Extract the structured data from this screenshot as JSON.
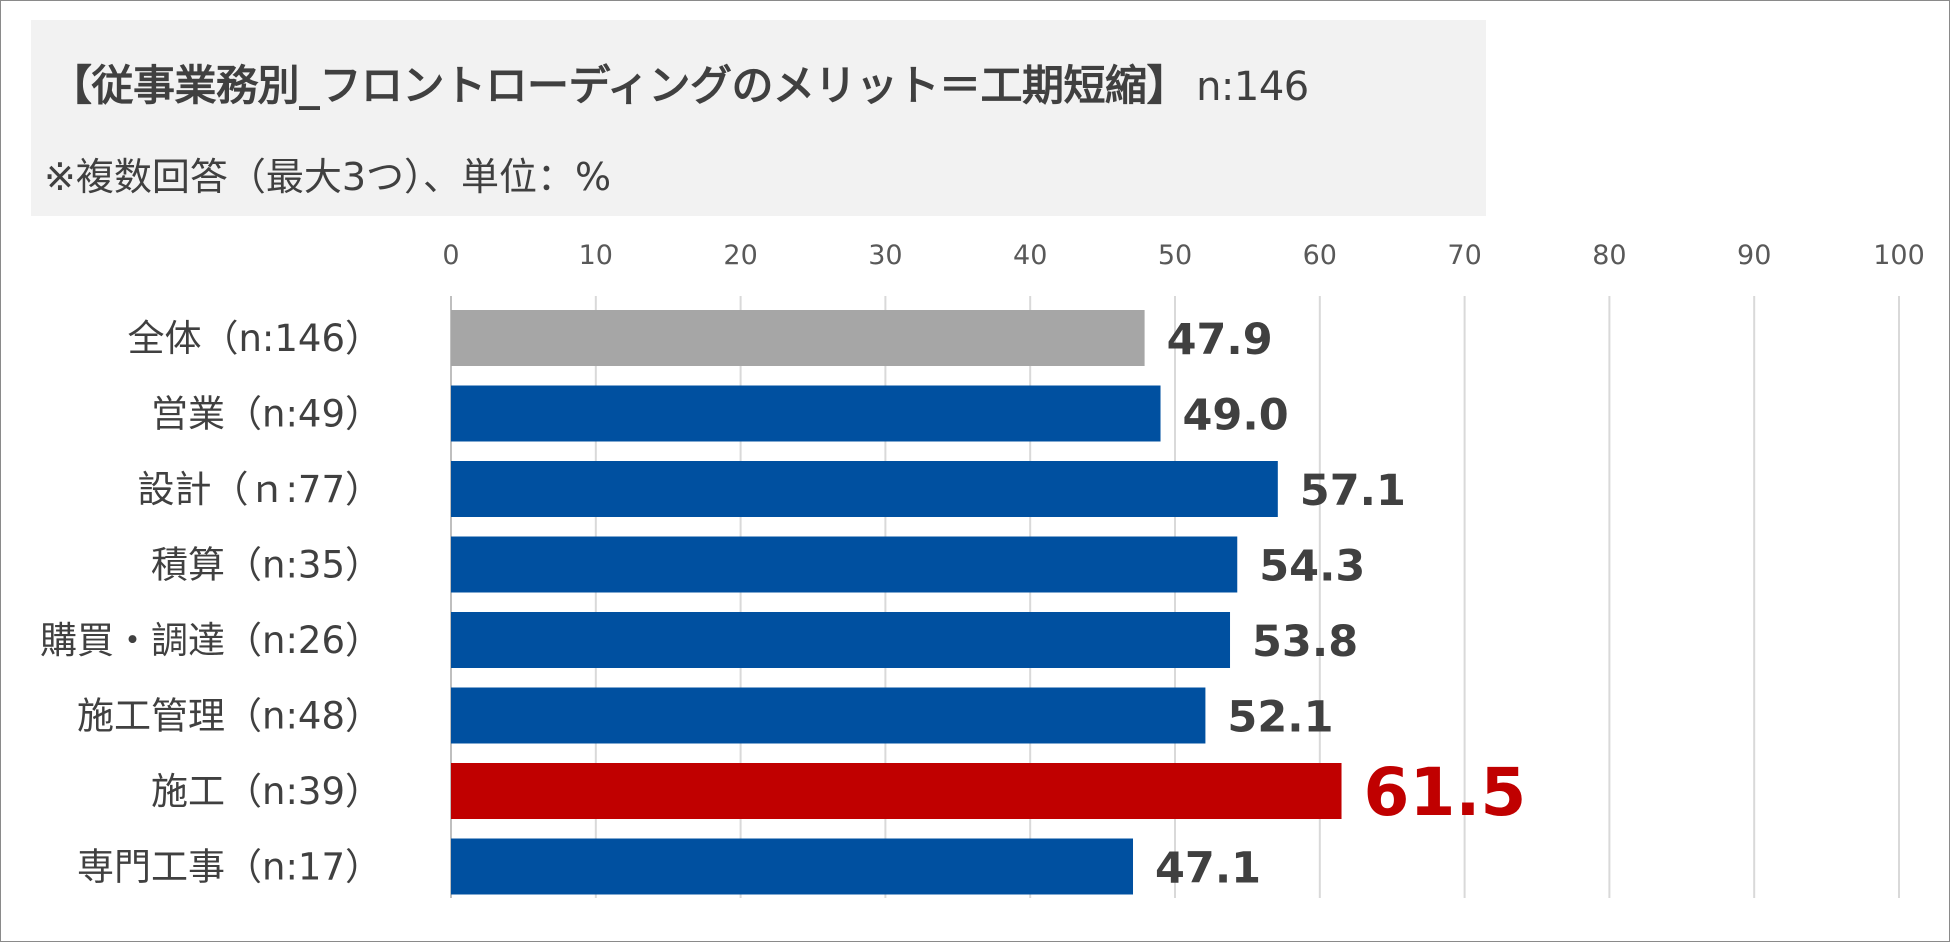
{
  "title": "【従事業務別_フロントローディングのメリット＝工期短縮】",
  "title_n": "n:146",
  "subtitle": "※複数回答（最大3つ）、単位：%",
  "colors": {
    "base": "#a6a6a6",
    "bar": "#0050a0",
    "highlight": "#c00000"
  },
  "chart_data": {
    "type": "bar",
    "orientation": "horizontal",
    "title": "【従事業務別_フロントローディングのメリット＝工期短縮】",
    "categories": [
      "全体（n:146）",
      "営業（n:49）",
      "設計（ｎ:77）",
      "積算（n:35）",
      "購買・調達（n:26）",
      "施工管理（n:48）",
      "施工（n:39）",
      "専門工事（n:17）"
    ],
    "values": [
      47.9,
      49.0,
      57.1,
      54.3,
      53.8,
      52.1,
      61.5,
      47.1
    ],
    "labels": [
      "47.9",
      "49.0",
      "57.1",
      "54.3",
      "53.8",
      "52.1",
      "61.5",
      "47.1"
    ],
    "bar_roles": [
      "base",
      "bar",
      "bar",
      "bar",
      "bar",
      "bar",
      "highlight",
      "bar"
    ],
    "xlim": [
      0,
      100
    ],
    "xticks": [
      "0",
      "10",
      "20",
      "30",
      "40",
      "50",
      "60",
      "70",
      "80",
      "90",
      "100"
    ],
    "xlabel": "",
    "ylabel": "",
    "grid": true,
    "legend": "none"
  }
}
